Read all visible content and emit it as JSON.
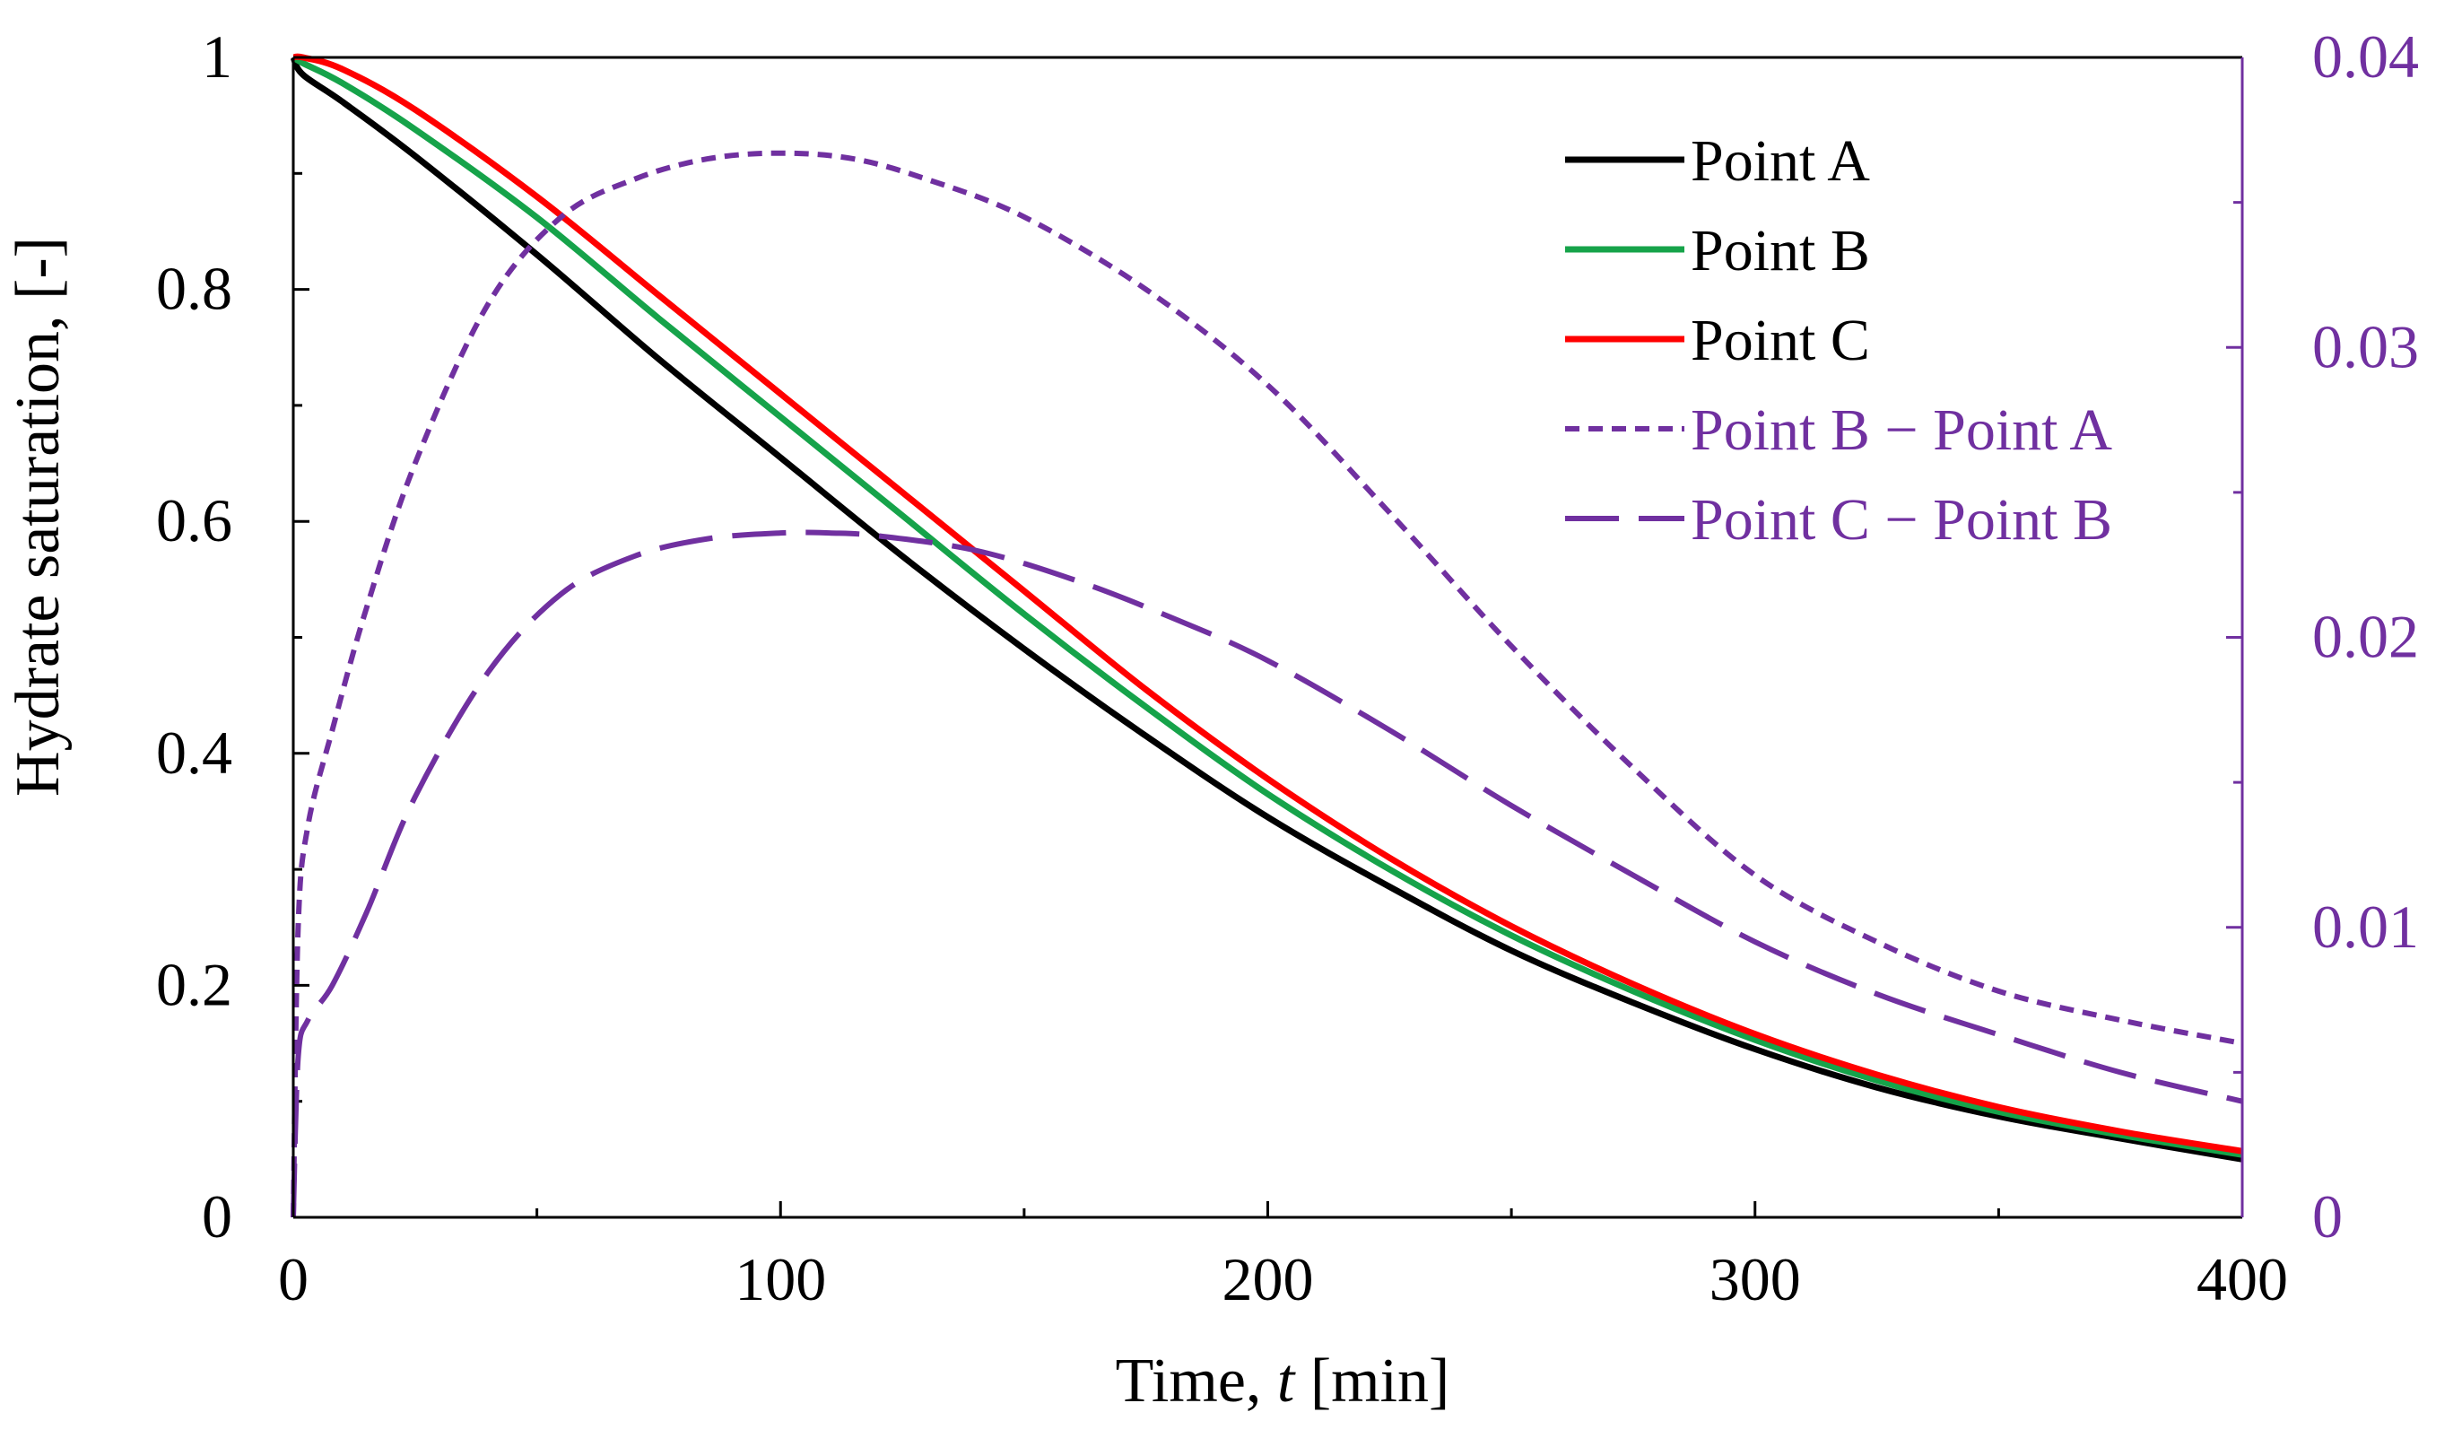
{
  "chart_data": {
    "type": "line",
    "xlabel": {
      "prefix": "Time, ",
      "var": "t",
      "suffix": " [min]"
    },
    "ylabel": "Hydrate saturation, [-]",
    "xlim": [
      0,
      400
    ],
    "ylim": [
      0,
      1
    ],
    "y2lim": [
      0,
      0.04
    ],
    "x_ticks": [
      "0",
      "100",
      "200",
      "300",
      "400"
    ],
    "y_ticks": [
      "0",
      "0.2",
      "0.4",
      "0.6",
      "0.8",
      "1"
    ],
    "y2_ticks": [
      "0",
      "0.01",
      "0.02",
      "0.03",
      "0.04"
    ],
    "grid": false,
    "legend_position": "top-right",
    "colors": {
      "axis": "#000000",
      "right_axis": "#7030A0"
    },
    "series": [
      {
        "name": "Point A",
        "axis": "left",
        "color": "#000000",
        "style": "solid",
        "x": [
          0,
          2,
          10,
          25,
          50,
          75,
          100,
          125,
          150,
          175,
          200,
          225,
          250,
          275,
          300,
          325,
          350,
          375,
          400
        ],
        "y": [
          1.0,
          0.985,
          0.962,
          0.915,
          0.83,
          0.74,
          0.655,
          0.57,
          0.49,
          0.415,
          0.345,
          0.285,
          0.23,
          0.185,
          0.145,
          0.112,
          0.087,
          0.068,
          0.05
        ]
      },
      {
        "name": "Point B",
        "axis": "left",
        "color": "#16A34A",
        "style": "solid",
        "x": [
          0,
          2,
          10,
          25,
          50,
          75,
          100,
          125,
          150,
          175,
          200,
          225,
          250,
          275,
          300,
          325,
          350,
          375,
          400
        ],
        "y": [
          1.0,
          0.995,
          0.978,
          0.938,
          0.862,
          0.775,
          0.69,
          0.605,
          0.52,
          0.44,
          0.365,
          0.3,
          0.243,
          0.195,
          0.153,
          0.118,
          0.091,
          0.071,
          0.054
        ]
      },
      {
        "name": "Point C",
        "axis": "left",
        "color": "#FF0000",
        "style": "solid",
        "x": [
          0,
          2,
          10,
          25,
          50,
          75,
          100,
          125,
          150,
          175,
          200,
          225,
          250,
          275,
          300,
          325,
          350,
          375,
          400
        ],
        "y": [
          1.0,
          1.0,
          0.99,
          0.955,
          0.88,
          0.795,
          0.71,
          0.625,
          0.54,
          0.455,
          0.378,
          0.31,
          0.251,
          0.201,
          0.158,
          0.123,
          0.095,
          0.074,
          0.057
        ]
      },
      {
        "name": "Point B − Point A",
        "axis": "right",
        "color": "#7030A0",
        "style": "short-dash",
        "x": [
          0,
          1,
          3,
          8,
          15,
          25,
          40,
          55,
          70,
          85,
          100,
          115,
          130,
          150,
          175,
          200,
          225,
          250,
          275,
          300,
          325,
          350,
          375,
          400
        ],
        "y": [
          0.0,
          0.01,
          0.0135,
          0.0168,
          0.021,
          0.026,
          0.0315,
          0.0345,
          0.0358,
          0.0365,
          0.0367,
          0.0365,
          0.0358,
          0.0345,
          0.032,
          0.0287,
          0.0243,
          0.0197,
          0.0155,
          0.0118,
          0.0095,
          0.0078,
          0.0068,
          0.006
        ]
      },
      {
        "name": "Point C − Point B",
        "axis": "right",
        "color": "#7030A0",
        "style": "long-dash",
        "x": [
          0,
          1,
          3,
          8,
          15,
          25,
          40,
          55,
          70,
          85,
          100,
          110,
          120,
          140,
          160,
          180,
          200,
          225,
          250,
          275,
          300,
          325,
          350,
          375,
          400
        ],
        "y": [
          0.0,
          0.0055,
          0.0068,
          0.008,
          0.0105,
          0.0145,
          0.0188,
          0.0215,
          0.0228,
          0.0234,
          0.0236,
          0.0236,
          0.0235,
          0.023,
          0.022,
          0.0207,
          0.0192,
          0.0168,
          0.0142,
          0.0118,
          0.0095,
          0.0077,
          0.0063,
          0.005,
          0.004
        ]
      }
    ]
  }
}
